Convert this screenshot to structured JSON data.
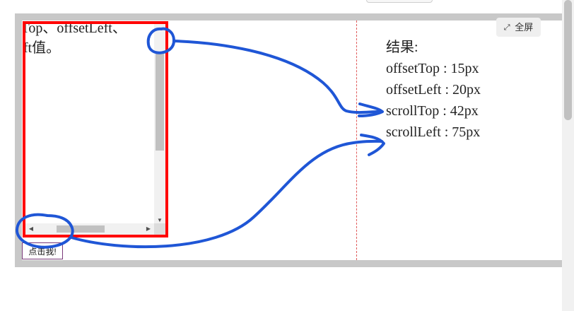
{
  "toolbar": {
    "fullscreen_icon": "expand-icon",
    "fullscreen_label": "全屏"
  },
  "demo": {
    "scroll_box_text_line1": "tTop、offsetLeft、",
    "scroll_box_text_line2": "eft值。",
    "button_label": "点击我!"
  },
  "results": {
    "title": "结果:",
    "offset_top": "offsetTop : 15px",
    "offset_left": "offsetLeft : 20px",
    "scroll_top": "scrollTop : 42px",
    "scroll_left": "scrollLeft : 75px"
  },
  "colors": {
    "frame_border": "#c8c8c8",
    "scroll_box_border": "#ff0000",
    "annotation_stroke": "#1f56d6",
    "divider": "#e05b5b"
  },
  "icons": {
    "scroll_up": "scroll-up-arrow",
    "scroll_down": "scroll-down-arrow",
    "scroll_left": "scroll-left-arrow",
    "scroll_right": "scroll-right-arrow"
  }
}
